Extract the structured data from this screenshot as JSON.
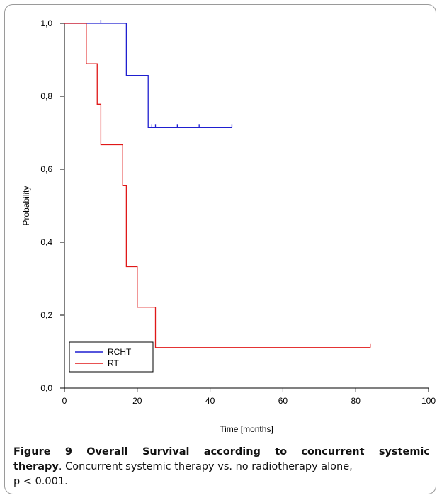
{
  "chart_data": {
    "type": "line",
    "subtype": "kaplan-meier-step",
    "xlabel": "Time [months]",
    "ylabel": "Probability",
    "xlim": [
      0,
      100
    ],
    "ylim": [
      0,
      1
    ],
    "x_ticks": [
      0,
      20,
      40,
      60,
      80,
      100
    ],
    "x_tick_labels": [
      "0",
      "20",
      "40",
      "60",
      "80",
      "100"
    ],
    "y_ticks": [
      0,
      0.2,
      0.4,
      0.6,
      0.8,
      1.0
    ],
    "y_tick_labels": [
      "0,0",
      "0,2",
      "0,4",
      "0,6",
      "0,8",
      "1,0"
    ],
    "grid": false,
    "legend_position": "bottom-left",
    "series": [
      {
        "name": "RCHT",
        "color": "#1f1fd0",
        "steps": [
          [
            0,
            1.0
          ],
          [
            17,
            1.0
          ],
          [
            17,
            0.857
          ],
          [
            23,
            0.857
          ],
          [
            23,
            0.714
          ],
          [
            46,
            0.714
          ]
        ],
        "censored": [
          [
            10,
            1.0
          ],
          [
            24,
            0.714
          ],
          [
            25,
            0.714
          ],
          [
            31,
            0.714
          ],
          [
            37,
            0.714
          ],
          [
            46,
            0.714
          ]
        ]
      },
      {
        "name": "RT",
        "color": "#e01818",
        "steps": [
          [
            0,
            1.0
          ],
          [
            6,
            1.0
          ],
          [
            6,
            0.889
          ],
          [
            9,
            0.889
          ],
          [
            9,
            0.778
          ],
          [
            10,
            0.778
          ],
          [
            10,
            0.667
          ],
          [
            16,
            0.667
          ],
          [
            16,
            0.556
          ],
          [
            17,
            0.556
          ],
          [
            17,
            0.333
          ],
          [
            20,
            0.333
          ],
          [
            20,
            0.222
          ],
          [
            25,
            0.222
          ],
          [
            25,
            0.111
          ],
          [
            84,
            0.111
          ]
        ],
        "censored": [
          [
            84,
            0.111
          ]
        ]
      }
    ]
  },
  "caption": {
    "label": "Figure 9 Overall Survival according to concurrent systemic",
    "label_cont": "therapy",
    "text_line1_rest": ". Concurrent systemic therapy vs. no radiotherapy alone,",
    "text_line3": "p < 0.001."
  }
}
